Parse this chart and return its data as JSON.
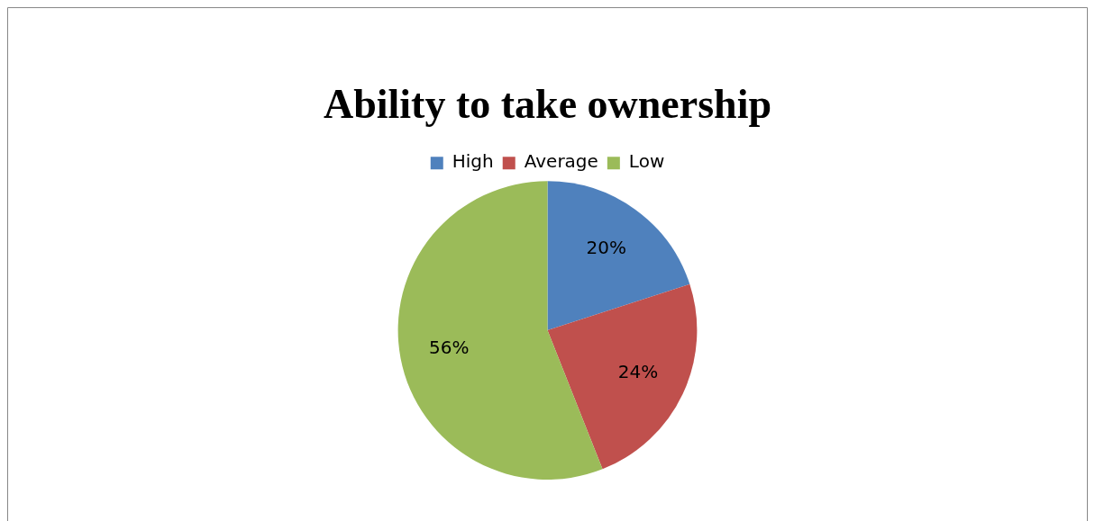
{
  "chart_data": {
    "type": "pie",
    "title": "Ability to take ownership",
    "categories": [
      "High",
      "Average",
      "Low"
    ],
    "values": [
      20,
      24,
      56
    ],
    "colors": [
      "#4f81bd",
      "#c0504d",
      "#9bbb59"
    ],
    "value_labels": [
      "20%",
      "24%",
      "56%"
    ],
    "legend": "top"
  }
}
